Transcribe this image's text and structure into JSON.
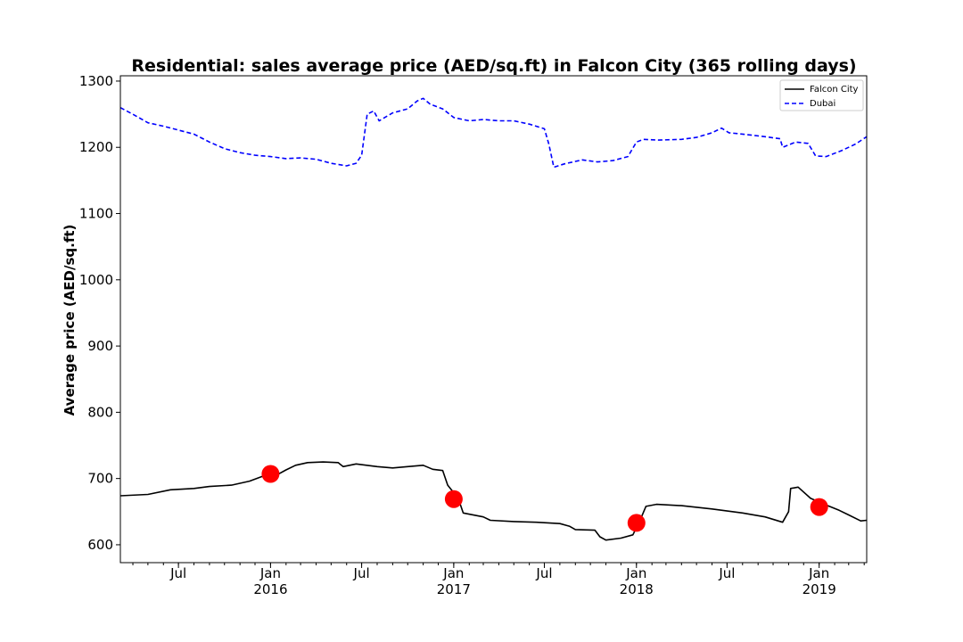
{
  "chart_data": {
    "type": "line",
    "title": "Residential: sales average price (AED/sq.ft) in Falcon City (365 rolling days)",
    "ylabel": "Average price (AED/sq.ft)",
    "xlabel": "",
    "xlim": [
      "2015-03-07",
      "2019-04-06"
    ],
    "ylim": [
      573,
      1308
    ],
    "yticks": [
      600,
      700,
      800,
      900,
      1000,
      1100,
      1200,
      1300
    ],
    "xticks_major": [
      {
        "date": "2015-07-01",
        "label": "Jul"
      },
      {
        "date": "2016-01-01",
        "label": "Jan",
        "sublabel": "2016"
      },
      {
        "date": "2016-07-01",
        "label": "Jul"
      },
      {
        "date": "2017-01-01",
        "label": "Jan",
        "sublabel": "2017"
      },
      {
        "date": "2017-07-01",
        "label": "Jul"
      },
      {
        "date": "2018-01-01",
        "label": "Jan",
        "sublabel": "2018"
      },
      {
        "date": "2018-07-01",
        "label": "Jul"
      },
      {
        "date": "2019-01-01",
        "label": "Jan",
        "sublabel": "2019"
      }
    ],
    "legend_position": "top-right",
    "grid": false,
    "series": [
      {
        "name": "Falcon City",
        "color": "#000000",
        "style": "solid",
        "points": [
          [
            "2015-03-07",
            674
          ],
          [
            "2015-05-01",
            676
          ],
          [
            "2015-06-15",
            683
          ],
          [
            "2015-08-01",
            685
          ],
          [
            "2015-09-01",
            688
          ],
          [
            "2015-10-15",
            690
          ],
          [
            "2015-11-20",
            696
          ],
          [
            "2015-12-15",
            703
          ],
          [
            "2016-01-15",
            706
          ],
          [
            "2016-02-01",
            713
          ],
          [
            "2016-02-20",
            720
          ],
          [
            "2016-03-15",
            724
          ],
          [
            "2016-04-15",
            725
          ],
          [
            "2016-05-15",
            724
          ],
          [
            "2016-05-25",
            718
          ],
          [
            "2016-06-20",
            722
          ],
          [
            "2016-08-01",
            718
          ],
          [
            "2016-09-01",
            716
          ],
          [
            "2016-10-01",
            718
          ],
          [
            "2016-11-01",
            720
          ],
          [
            "2016-11-20",
            714
          ],
          [
            "2016-12-10",
            712
          ],
          [
            "2016-12-20",
            690
          ],
          [
            "2017-01-10",
            670
          ],
          [
            "2017-01-20",
            648
          ],
          [
            "2017-03-01",
            642
          ],
          [
            "2017-03-15",
            637
          ],
          [
            "2017-05-01",
            635
          ],
          [
            "2017-06-15",
            634
          ],
          [
            "2017-08-01",
            632
          ],
          [
            "2017-08-20",
            628
          ],
          [
            "2017-09-01",
            623
          ],
          [
            "2017-10-10",
            622
          ],
          [
            "2017-10-20",
            612
          ],
          [
            "2017-11-01",
            607
          ],
          [
            "2017-12-01",
            610
          ],
          [
            "2017-12-25",
            615
          ],
          [
            "2018-01-10",
            640
          ],
          [
            "2018-01-20",
            658
          ],
          [
            "2018-02-10",
            661
          ],
          [
            "2018-04-01",
            659
          ],
          [
            "2018-06-01",
            654
          ],
          [
            "2018-08-01",
            648
          ],
          [
            "2018-09-15",
            642
          ],
          [
            "2018-10-20",
            634
          ],
          [
            "2018-11-01",
            650
          ],
          [
            "2018-11-05",
            685
          ],
          [
            "2018-11-20",
            687
          ],
          [
            "2018-12-15",
            670
          ],
          [
            "2019-01-15",
            660
          ],
          [
            "2019-02-10",
            652
          ],
          [
            "2019-03-01",
            645
          ],
          [
            "2019-03-25",
            636
          ],
          [
            "2019-04-06",
            637
          ]
        ]
      },
      {
        "name": "Dubai",
        "color": "#0000ff",
        "style": "dashed",
        "points": [
          [
            "2015-03-07",
            1260
          ],
          [
            "2015-04-01",
            1250
          ],
          [
            "2015-05-01",
            1237
          ],
          [
            "2015-06-01",
            1232
          ],
          [
            "2015-07-01",
            1226
          ],
          [
            "2015-08-01",
            1220
          ],
          [
            "2015-09-01",
            1208
          ],
          [
            "2015-10-01",
            1198
          ],
          [
            "2015-11-01",
            1192
          ],
          [
            "2015-12-01",
            1188
          ],
          [
            "2016-01-01",
            1186
          ],
          [
            "2016-02-01",
            1183
          ],
          [
            "2016-03-01",
            1184
          ],
          [
            "2016-04-01",
            1182
          ],
          [
            "2016-05-01",
            1176
          ],
          [
            "2016-06-01",
            1172
          ],
          [
            "2016-06-20",
            1176
          ],
          [
            "2016-07-01",
            1188
          ],
          [
            "2016-07-12",
            1250
          ],
          [
            "2016-07-25",
            1255
          ],
          [
            "2016-08-05",
            1240
          ],
          [
            "2016-09-01",
            1252
          ],
          [
            "2016-10-01",
            1258
          ],
          [
            "2016-10-20",
            1270
          ],
          [
            "2016-11-01",
            1274
          ],
          [
            "2016-11-15",
            1265
          ],
          [
            "2016-12-10",
            1258
          ],
          [
            "2017-01-01",
            1245
          ],
          [
            "2017-02-01",
            1240
          ],
          [
            "2017-03-01",
            1242
          ],
          [
            "2017-04-01",
            1240
          ],
          [
            "2017-05-01",
            1240
          ],
          [
            "2017-06-01",
            1235
          ],
          [
            "2017-07-01",
            1228
          ],
          [
            "2017-07-10",
            1205
          ],
          [
            "2017-07-20",
            1170
          ],
          [
            "2017-08-10",
            1175
          ],
          [
            "2017-09-15",
            1181
          ],
          [
            "2017-10-15",
            1178
          ],
          [
            "2017-11-15",
            1180
          ],
          [
            "2017-12-15",
            1186
          ],
          [
            "2018-01-01",
            1208
          ],
          [
            "2018-01-15",
            1212
          ],
          [
            "2018-02-15",
            1211
          ],
          [
            "2018-04-01",
            1212
          ],
          [
            "2018-05-01",
            1215
          ],
          [
            "2018-06-01",
            1222
          ],
          [
            "2018-06-20",
            1229
          ],
          [
            "2018-07-05",
            1222
          ],
          [
            "2018-08-01",
            1220
          ],
          [
            "2018-09-15",
            1216
          ],
          [
            "2018-10-15",
            1213
          ],
          [
            "2018-10-20",
            1200
          ],
          [
            "2018-11-15",
            1208
          ],
          [
            "2018-12-10",
            1206
          ],
          [
            "2018-12-25",
            1187
          ],
          [
            "2019-01-15",
            1186
          ],
          [
            "2019-02-15",
            1195
          ],
          [
            "2019-03-15",
            1205
          ],
          [
            "2019-04-06",
            1216
          ]
        ]
      }
    ],
    "markers": {
      "color": "#ff0000",
      "points": [
        [
          "2016-01-01",
          707
        ],
        [
          "2017-01-01",
          669
        ],
        [
          "2018-01-01",
          633
        ],
        [
          "2019-01-01",
          657
        ]
      ]
    }
  }
}
